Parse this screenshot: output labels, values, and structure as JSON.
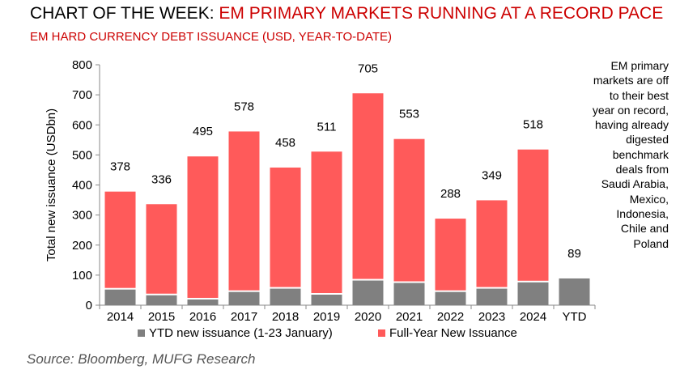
{
  "header": {
    "title_prefix": "CHART OF THE WEEK: ",
    "title_main": "EM PRIMARY MARKETS RUNNING AT A RECORD PACE",
    "subtitle": "EM HARD CURRENCY DEBT ISSUANCE (USD, YEAR-TO-DATE)"
  },
  "note": "EM primary markets are off to their best year on record, having already digested benchmark deals from Saudi Arabia, Mexico, Indonesia, Chile and Poland",
  "source": "Source: Bloomberg, MUFG Research",
  "colors": {
    "ytd": "#808080",
    "full": "#ff5a5a",
    "title_red": "#cc0000"
  },
  "chart_data": {
    "type": "bar",
    "stacked": true,
    "ylabel": "Total new issuance (USDbn)",
    "ylim": [
      0,
      800
    ],
    "yticks": [
      0,
      100,
      200,
      300,
      400,
      500,
      600,
      700,
      800
    ],
    "categories": [
      "2014",
      "2015",
      "2016",
      "2017",
      "2018",
      "2019",
      "2020",
      "2021",
      "2022",
      "2023",
      "2024",
      "YTD"
    ],
    "series": [
      {
        "name": "YTD new issuance (1-23 January)",
        "values": [
          52,
          33,
          19,
          44,
          55,
          35,
          82,
          74,
          44,
          55,
          76,
          89
        ]
      },
      {
        "name": "Full-Year New Issuance",
        "values": [
          326,
          303,
          476,
          534,
          403,
          476,
          623,
          479,
          244,
          294,
          442,
          0
        ]
      }
    ],
    "data_labels": [
      "378",
      "336",
      "495",
      "578",
      "458",
      "511",
      "705",
      "553",
      "288",
      "349",
      "518",
      "89"
    ],
    "legend_position": "bottom"
  }
}
